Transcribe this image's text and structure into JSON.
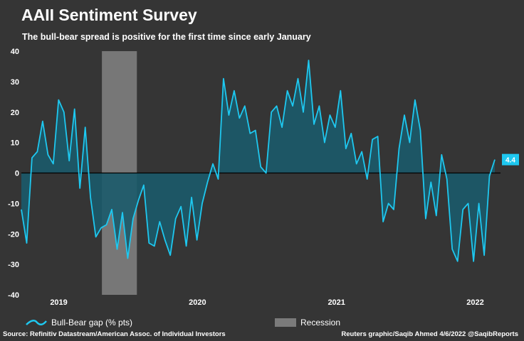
{
  "title": "AAII Sentiment Survey",
  "subtitle": "The bull-bear spread is positive for the first time since early January",
  "legend": {
    "series_label": "Bull-Bear gap (% pts)",
    "recession_label": "Recession"
  },
  "source": "Source: Refinitiv Datastream/American Assoc. of Individual Investors",
  "credit": "Reuters graphic/Saqib Ahmed 4/6/2022 @SaqibReports",
  "colors": {
    "background": "#353535",
    "line": "#1ec8f0",
    "area": "#1b5a6a",
    "recession": "#7b7b7b",
    "callout": "#1ec8f0"
  },
  "chart_data": {
    "type": "area",
    "ylim": [
      -40,
      40
    ],
    "yticks": [
      40,
      30,
      20,
      10,
      0,
      -10,
      -20,
      -30,
      -40
    ],
    "xlim": [
      "2018-11-01",
      "2022-04-15"
    ],
    "xticks": [
      {
        "label": "2019",
        "date": "2019-01-01"
      },
      {
        "label": "2020",
        "date": "2020-01-01"
      },
      {
        "label": "2021",
        "date": "2021-01-01"
      },
      {
        "label": "2022",
        "date": "2022-01-01"
      }
    ],
    "recession": {
      "start": "2019-06-01",
      "end": "2019-09-01",
      "label": "Recession"
    },
    "last_value_label": "4.4",
    "grid": false,
    "series": [
      {
        "name": "Bull-Bear gap (% pts)",
        "dates": [
          "2018-11-01",
          "2018-11-15",
          "2018-11-29",
          "2018-12-13",
          "2018-12-27",
          "2019-01-10",
          "2019-01-24",
          "2019-02-07",
          "2019-02-21",
          "2019-03-07",
          "2019-03-21",
          "2019-04-04",
          "2019-04-18",
          "2019-05-02",
          "2019-05-16",
          "2019-05-30",
          "2019-06-13",
          "2019-06-27",
          "2019-07-11",
          "2019-07-25",
          "2019-08-08",
          "2019-08-22",
          "2019-09-05",
          "2019-09-19",
          "2019-10-03",
          "2019-10-17",
          "2019-10-31",
          "2019-11-14",
          "2019-11-28",
          "2019-12-12",
          "2019-12-26",
          "2020-01-09",
          "2020-01-23",
          "2020-02-06",
          "2020-02-20",
          "2020-03-05",
          "2020-03-19",
          "2020-04-02",
          "2020-04-16",
          "2020-04-30",
          "2020-05-14",
          "2020-05-28",
          "2020-06-11",
          "2020-06-25",
          "2020-07-09",
          "2020-07-23",
          "2020-08-06",
          "2020-08-20",
          "2020-09-03",
          "2020-09-17",
          "2020-10-01",
          "2020-10-15",
          "2020-10-29",
          "2020-11-12",
          "2020-11-26",
          "2020-12-10",
          "2020-12-24",
          "2021-01-07",
          "2021-01-21",
          "2021-02-04",
          "2021-02-18",
          "2021-03-04",
          "2021-03-18",
          "2021-04-01",
          "2021-04-15",
          "2021-04-29",
          "2021-05-13",
          "2021-05-27",
          "2021-06-10",
          "2021-06-24",
          "2021-07-08",
          "2021-07-22",
          "2021-08-05",
          "2021-08-19",
          "2021-09-02",
          "2021-09-16",
          "2021-09-30",
          "2021-10-14",
          "2021-10-28",
          "2021-11-11",
          "2021-11-25",
          "2021-12-09",
          "2021-12-23",
          "2022-01-06",
          "2022-01-20",
          "2022-02-03",
          "2022-02-17",
          "2022-03-03",
          "2022-03-17",
          "2022-03-31"
        ],
        "values": [
          -12,
          -23,
          5,
          7,
          17,
          6,
          3,
          24,
          20,
          4,
          21,
          -5,
          15,
          -8,
          -21,
          -18,
          -17,
          -12,
          -25,
          -13,
          -28,
          -15,
          -9,
          -4,
          -23,
          -24,
          -16,
          -22,
          -27,
          -15,
          -11,
          -24,
          -8,
          -22,
          -10,
          -3,
          3,
          -2,
          31,
          19,
          27,
          18,
          22,
          13,
          14,
          2,
          0,
          20,
          22,
          15,
          27,
          22,
          31,
          20,
          37,
          16,
          22,
          10,
          19,
          15,
          27,
          8,
          13,
          3,
          7,
          -2,
          11,
          12,
          -16,
          -10,
          -12,
          8,
          19,
          10,
          24,
          14,
          -15,
          -3,
          -14,
          6,
          -2,
          -25,
          -29,
          -12,
          -10,
          -29,
          -10,
          -27,
          -1,
          4.4
        ]
      }
    ]
  }
}
